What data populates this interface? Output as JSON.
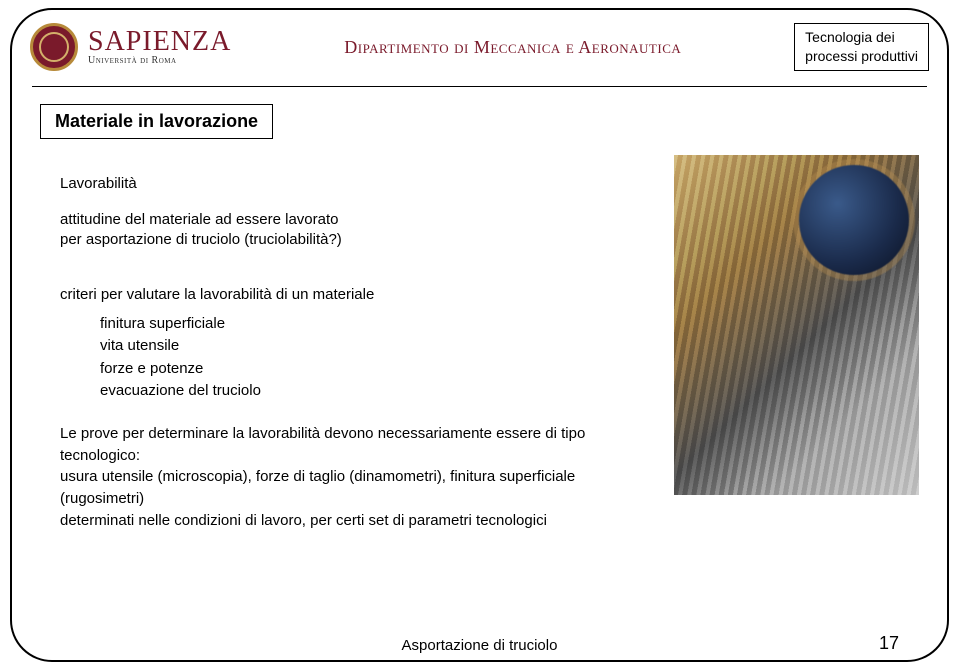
{
  "header": {
    "university_name": "SAPIENZA",
    "university_sub": "Università di Roma",
    "department": "Dipartimento di Meccanica e Aeronautica",
    "course_line1": "Tecnologia dei",
    "course_line2": "processi produttivi"
  },
  "title": "Materiale in lavorazione",
  "body": {
    "subheading": "Lavorabilità",
    "intro_l1": "attitudine del materiale ad essere lavorato",
    "intro_l2": "per asportazione di truciolo (truciolabilità?)",
    "criteria_lead": "criteri per valutare la lavorabilità di un materiale",
    "criteria": {
      "c1": "finitura superficiale",
      "c2": "vita utensile",
      "c3": "forze e potenze",
      "c4": "evacuazione del truciolo"
    },
    "tests_l1": "Le prove per determinare la lavorabilità devono necessariamente essere di tipo tecnologico:",
    "tests_l2": "usura utensile (microscopia),  forze di taglio (dinamometri),  finitura superficiale (rugosimetri)",
    "tests_l3": "determinati nelle condizioni di lavoro, per certi set di parametri tecnologici"
  },
  "footer": {
    "label": "Asportazione di truciolo",
    "page": "17"
  },
  "colors": {
    "brand": "#7a1a2b",
    "gold": "#b78a3a",
    "text": "#000000",
    "background": "#ffffff"
  }
}
